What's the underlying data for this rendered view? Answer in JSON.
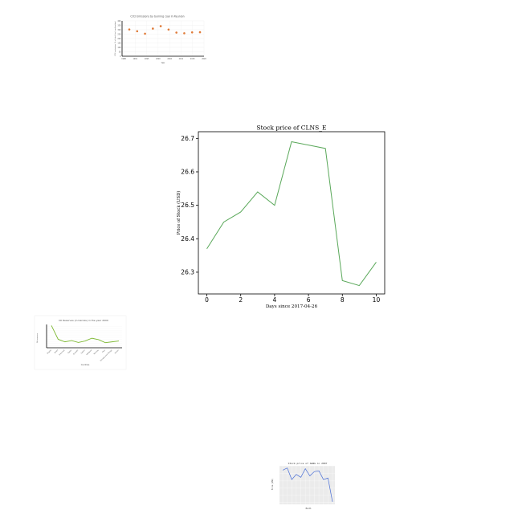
{
  "chart_data": [
    {
      "type": "line",
      "title": "Stock price of CLNS_E",
      "xlabel": "Days since 2017-04-26",
      "ylabel": "Price of Stock (USD)",
      "x": [
        0,
        1,
        2,
        3,
        4,
        5,
        6,
        7,
        8,
        9,
        10
      ],
      "series": [
        {
          "name": "",
          "values": [
            26.37,
            26.45,
            26.48,
            26.54,
            26.5,
            26.69,
            26.68,
            26.67,
            26.275,
            26.26,
            26.33
          ],
          "color": "#5aa85a"
        }
      ],
      "xticks": [
        "0",
        "2",
        "4",
        "6",
        "8",
        "10"
      ],
      "yticks": [
        "26.3",
        "26.4",
        "26.5",
        "26.6",
        "26.7"
      ],
      "xlim": [
        -0.5,
        10.5
      ],
      "ylim": [
        26.235,
        26.72
      ],
      "grid": false
    },
    {
      "type": "scatter",
      "title": "CO2 Emissions by burning coal in Reunion",
      "xlabel": "Year",
      "ylabel": "CO2 emissions (% of total fuel combustion)",
      "x": [
        1988,
        1990,
        1992,
        1994,
        1996,
        1998,
        2000,
        2002,
        2004,
        2006
      ],
      "series": [
        {
          "name": "",
          "values": [
            303,
            283,
            255,
            313,
            340,
            302,
            268,
            260,
            270,
            272
          ],
          "color": "#e07b39"
        }
      ],
      "xticks": [
        "1988",
        "1991",
        "1995",
        "2000",
        "2004",
        "2011",
        "2015",
        "2020"
      ],
      "yticks": [
        "0",
        "50",
        "100",
        "150",
        "200",
        "250",
        "300",
        "350",
        "400"
      ],
      "ylim": [
        0,
        400
      ],
      "grid": true
    },
    {
      "type": "line",
      "title": "Oil Reserves (in barrels) in the year 2000",
      "xlabel": "Countries",
      "ylabel": "Oil reserves",
      "categories": [
        "Angola",
        "Brazil",
        "Denmark",
        "Egypt",
        "Ecuador",
        "Gabon",
        "Malaysia",
        "Norway",
        "Peru",
        "Trinidad and Tobago",
        "Yemen"
      ],
      "series": [
        {
          "name": "",
          "values": [
            10.5,
            4.0,
            2.8,
            3.4,
            2.5,
            3.2,
            4.5,
            3.8,
            2.4,
            2.8,
            3.2
          ],
          "color": "#7db832"
        }
      ],
      "grid": true
    },
    {
      "type": "line",
      "title": "Stock price of AGNG in 2007",
      "xlabel": "Month",
      "ylabel": "Price (USD)",
      "x": [
        1,
        2,
        3,
        4,
        5,
        6,
        7,
        8,
        9,
        10,
        11,
        12
      ],
      "series": [
        {
          "name": "",
          "values": [
            29.0,
            29.6,
            26.4,
            27.8,
            27.0,
            29.4,
            27.4,
            28.6,
            28.8,
            26.4,
            26.8,
            20.2
          ],
          "color": "#4a6fd6"
        }
      ],
      "grid": true
    }
  ]
}
